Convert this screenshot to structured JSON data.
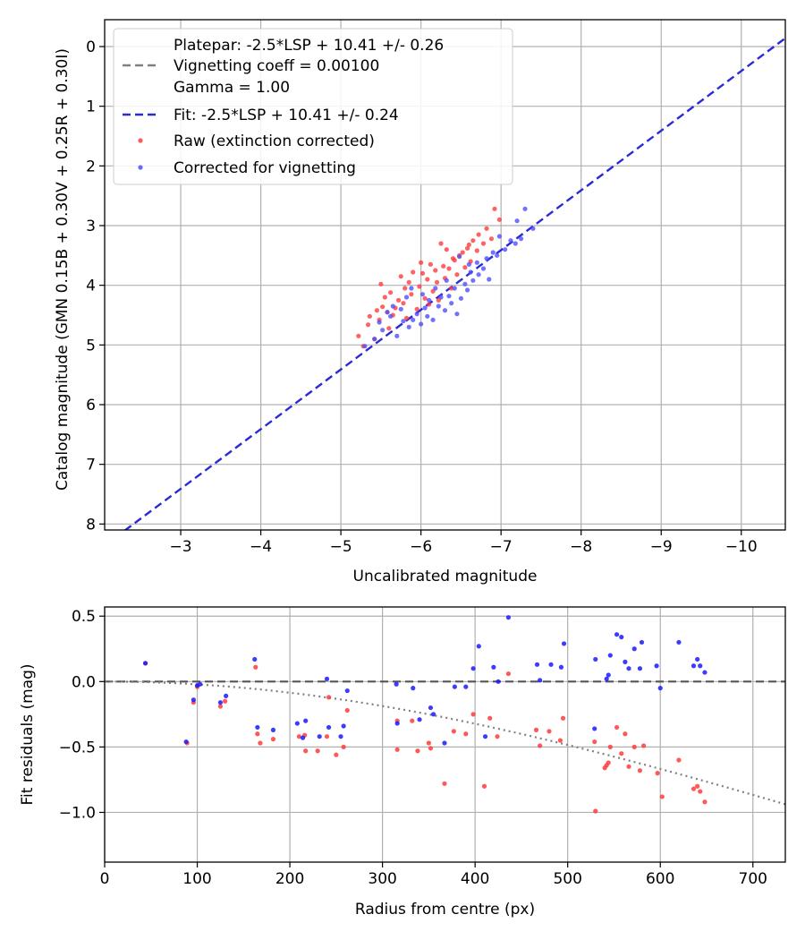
{
  "chart_data": [
    {
      "type": "scatter",
      "xlabel": "Uncalibrated magnitude",
      "ylabel": "Catalog magnitude (GMN 0.15B + 0.30V + 0.25R + 0.30I)",
      "xlim": [
        -2.05,
        -10.55
      ],
      "ylim": [
        8.1,
        -0.45
      ],
      "x_ticks": [
        -3,
        -4,
        -5,
        -6,
        -7,
        -8,
        -9,
        -10
      ],
      "x_tick_labels": [
        "−3",
        "−4",
        "−5",
        "−6",
        "−7",
        "−8",
        "−9",
        "−10"
      ],
      "y_ticks": [
        0,
        1,
        2,
        3,
        4,
        5,
        6,
        7,
        8
      ],
      "y_tick_labels": [
        "0",
        "1",
        "2",
        "3",
        "4",
        "5",
        "6",
        "7",
        "8"
      ],
      "grid": true,
      "legend_position": "top-left",
      "legend": [
        {
          "label": "Platepar: -2.5*LSP + 10.41 +/- 0.26",
          "kind": "none"
        },
        {
          "label": "Vignetting coeff = 0.00100",
          "kind": "line",
          "color": "#808080",
          "dash": true
        },
        {
          "label": "Gamma = 1.00",
          "kind": "none"
        },
        {
          "label": "Fit: -2.5*LSP + 10.41 +/- 0.24",
          "kind": "line",
          "color": "#2a2ad8",
          "dash": true
        },
        {
          "label": "Raw (extinction corrected)",
          "kind": "marker",
          "color": "#ff3b3b"
        },
        {
          "label": "Corrected for vignetting",
          "kind": "marker",
          "color": "#4f4fff"
        }
      ],
      "fit_line": {
        "slope": 1.0,
        "intercept": 10.41,
        "color": "#2a2ad8"
      },
      "series": [
        {
          "name": "Raw (extinction corrected)",
          "color": "#ff3b3b",
          "points": [
            [
              -5.22,
              4.85
            ],
            [
              -5.28,
              5.02
            ],
            [
              -5.34,
              4.66
            ],
            [
              -5.36,
              4.52
            ],
            [
              -5.42,
              4.9
            ],
            [
              -5.45,
              4.42
            ],
            [
              -5.48,
              4.58
            ],
            [
              -5.5,
              3.98
            ],
            [
              -5.52,
              4.36
            ],
            [
              -5.55,
              4.2
            ],
            [
              -5.58,
              4.45
            ],
            [
              -5.6,
              4.72
            ],
            [
              -5.62,
              4.12
            ],
            [
              -5.65,
              4.5
            ],
            [
              -5.68,
              4.38
            ],
            [
              -5.72,
              4.25
            ],
            [
              -5.75,
              3.85
            ],
            [
              -5.78,
              4.3
            ],
            [
              -5.8,
              4.05
            ],
            [
              -5.82,
              4.55
            ],
            [
              -5.85,
              3.95
            ],
            [
              -5.88,
              4.15
            ],
            [
              -5.9,
              3.78
            ],
            [
              -5.95,
              4.4
            ],
            [
              -5.98,
              4.02
            ],
            [
              -6.0,
              3.62
            ],
            [
              -6.02,
              3.8
            ],
            [
              -6.05,
              4.22
            ],
            [
              -6.08,
              3.9
            ],
            [
              -6.1,
              4.32
            ],
            [
              -6.12,
              3.65
            ],
            [
              -6.15,
              4.1
            ],
            [
              -6.18,
              3.75
            ],
            [
              -6.2,
              3.95
            ],
            [
              -6.22,
              4.25
            ],
            [
              -6.25,
              3.3
            ],
            [
              -6.28,
              3.68
            ],
            [
              -6.3,
              3.88
            ],
            [
              -6.32,
              3.4
            ],
            [
              -6.35,
              3.72
            ],
            [
              -6.38,
              4.05
            ],
            [
              -6.42,
              3.58
            ],
            [
              -6.45,
              3.82
            ],
            [
              -6.48,
              3.5
            ],
            [
              -6.52,
              3.45
            ],
            [
              -6.55,
              3.7
            ],
            [
              -6.58,
              3.38
            ],
            [
              -6.6,
              3.32
            ],
            [
              -6.62,
              3.6
            ],
            [
              -6.65,
              3.25
            ],
            [
              -6.7,
              3.42
            ],
            [
              -6.72,
              3.15
            ],
            [
              -6.78,
              3.3
            ],
            [
              -6.82,
              3.05
            ],
            [
              -6.88,
              3.22
            ],
            [
              -6.92,
              2.72
            ],
            [
              -6.98,
              2.9
            ],
            [
              -6.4,
              3.55
            ]
          ]
        },
        {
          "name": "Corrected for vignetting",
          "color": "#4f4fff",
          "points": [
            [
              -5.3,
              5.02
            ],
            [
              -5.42,
              4.9
            ],
            [
              -5.48,
              4.62
            ],
            [
              -5.52,
              4.75
            ],
            [
              -5.58,
              4.45
            ],
            [
              -5.62,
              4.52
            ],
            [
              -5.65,
              4.35
            ],
            [
              -5.7,
              4.85
            ],
            [
              -5.75,
              4.4
            ],
            [
              -5.78,
              4.6
            ],
            [
              -5.82,
              4.2
            ],
            [
              -5.85,
              4.7
            ],
            [
              -5.88,
              4.05
            ],
            [
              -5.9,
              4.58
            ],
            [
              -5.95,
              4.48
            ],
            [
              -6.0,
              4.65
            ],
            [
              -6.02,
              4.15
            ],
            [
              -6.05,
              4.38
            ],
            [
              -6.08,
              4.52
            ],
            [
              -6.1,
              4.25
            ],
            [
              -6.15,
              4.58
            ],
            [
              -6.18,
              4.05
            ],
            [
              -6.22,
              4.35
            ],
            [
              -6.25,
              4.2
            ],
            [
              -6.3,
              4.42
            ],
            [
              -6.32,
              3.92
            ],
            [
              -6.35,
              4.18
            ],
            [
              -6.38,
              4.3
            ],
            [
              -6.42,
              4.05
            ],
            [
              -6.45,
              4.48
            ],
            [
              -6.48,
              3.52
            ],
            [
              -6.5,
              4.22
            ],
            [
              -6.55,
              3.98
            ],
            [
              -6.58,
              4.08
            ],
            [
              -6.62,
              3.78
            ],
            [
              -6.65,
              3.92
            ],
            [
              -6.7,
              3.62
            ],
            [
              -6.72,
              3.82
            ],
            [
              -6.78,
              3.72
            ],
            [
              -6.82,
              3.55
            ],
            [
              -6.85,
              3.9
            ],
            [
              -6.9,
              3.45
            ],
            [
              -6.95,
              3.5
            ],
            [
              -6.98,
              3.18
            ],
            [
              -7.05,
              3.4
            ],
            [
              -7.12,
              3.25
            ],
            [
              -7.18,
              3.3
            ],
            [
              -7.2,
              2.92
            ],
            [
              -7.25,
              3.22
            ],
            [
              -7.3,
              2.72
            ],
            [
              -7.4,
              3.05
            ],
            [
              -6.6,
              3.65
            ]
          ]
        }
      ]
    },
    {
      "type": "scatter",
      "xlabel": "Radius from centre (px)",
      "ylabel": "Fit residuals (mag)",
      "xlim": [
        0,
        735
      ],
      "ylim": [
        -1.38,
        0.57
      ],
      "x_ticks": [
        0,
        100,
        200,
        300,
        400,
        500,
        600,
        700
      ],
      "x_tick_labels": [
        "0",
        "100",
        "200",
        "300",
        "400",
        "500",
        "600",
        "700"
      ],
      "y_ticks": [
        0.5,
        0.0,
        -0.5,
        -1.0
      ],
      "y_tick_labels": [
        "0.5",
        "0.0",
        "−0.5",
        "−1.0"
      ],
      "grid": true,
      "reference_line": {
        "y": 0.0,
        "color": "#555555",
        "dash": true
      },
      "vignetting_curve": {
        "coefficient": 0.001,
        "color": "#808080",
        "dotted": true
      },
      "series": [
        {
          "name": "Raw (extinction corrected)",
          "color": "#ff3b3b",
          "points": [
            [
              44,
              0.14
            ],
            [
              89,
              -0.47
            ],
            [
              96,
              -0.16
            ],
            [
              100,
              -0.04
            ],
            [
              125,
              -0.19
            ],
            [
              130,
              -0.15
            ],
            [
              163,
              0.11
            ],
            [
              165,
              -0.4
            ],
            [
              168,
              -0.47
            ],
            [
              182,
              -0.44
            ],
            [
              210,
              -0.42
            ],
            [
              216,
              -0.41
            ],
            [
              217,
              -0.53
            ],
            [
              230,
              -0.53
            ],
            [
              240,
              -0.42
            ],
            [
              242,
              -0.12
            ],
            [
              250,
              -0.56
            ],
            [
              258,
              -0.5
            ],
            [
              262,
              -0.22
            ],
            [
              316,
              -0.3
            ],
            [
              316,
              -0.52
            ],
            [
              332,
              -0.3
            ],
            [
              338,
              -0.53
            ],
            [
              350,
              -0.47
            ],
            [
              352,
              -0.51
            ],
            [
              367,
              -0.78
            ],
            [
              377,
              -0.38
            ],
            [
              390,
              -0.4
            ],
            [
              398,
              -0.25
            ],
            [
              410,
              -0.8
            ],
            [
              416,
              -0.28
            ],
            [
              424,
              -0.42
            ],
            [
              436,
              0.06
            ],
            [
              466,
              -0.37
            ],
            [
              470,
              -0.49
            ],
            [
              480,
              -0.38
            ],
            [
              492,
              -0.45
            ],
            [
              495,
              -0.28
            ],
            [
              529,
              -0.46
            ],
            [
              530,
              -0.99
            ],
            [
              540,
              -0.66
            ],
            [
              542,
              -0.64
            ],
            [
              544,
              -0.62
            ],
            [
              546,
              -0.5
            ],
            [
              553,
              -0.35
            ],
            [
              558,
              -0.55
            ],
            [
              562,
              -0.4
            ],
            [
              566,
              -0.65
            ],
            [
              572,
              -0.5
            ],
            [
              578,
              -0.68
            ],
            [
              582,
              -0.49
            ],
            [
              597,
              -0.7
            ],
            [
              602,
              -0.88
            ],
            [
              620,
              -0.6
            ],
            [
              636,
              -0.82
            ],
            [
              640,
              -0.8
            ],
            [
              643,
              -0.84
            ],
            [
              648,
              -0.92
            ]
          ]
        },
        {
          "name": "Corrected for vignetting",
          "color": "#1a1aff",
          "points": [
            [
              44,
              0.14
            ],
            [
              88,
              -0.46
            ],
            [
              96,
              -0.14
            ],
            [
              100,
              -0.03
            ],
            [
              103,
              -0.02
            ],
            [
              125,
              -0.16
            ],
            [
              131,
              -0.11
            ],
            [
              162,
              0.17
            ],
            [
              165,
              -0.35
            ],
            [
              182,
              -0.37
            ],
            [
              208,
              -0.32
            ],
            [
              214,
              -0.43
            ],
            [
              217,
              -0.3
            ],
            [
              232,
              -0.42
            ],
            [
              240,
              0.02
            ],
            [
              242,
              -0.35
            ],
            [
              255,
              -0.42
            ],
            [
              258,
              -0.34
            ],
            [
              262,
              -0.07
            ],
            [
              315,
              -0.02
            ],
            [
              316,
              -0.32
            ],
            [
              333,
              -0.05
            ],
            [
              340,
              -0.29
            ],
            [
              352,
              -0.2
            ],
            [
              355,
              -0.25
            ],
            [
              367,
              -0.47
            ],
            [
              378,
              -0.04
            ],
            [
              390,
              -0.04
            ],
            [
              398,
              0.1
            ],
            [
              404,
              0.27
            ],
            [
              411,
              -0.42
            ],
            [
              420,
              0.11
            ],
            [
              425,
              0.0
            ],
            [
              436,
              0.49
            ],
            [
              467,
              0.13
            ],
            [
              470,
              0.01
            ],
            [
              482,
              0.13
            ],
            [
              493,
              0.11
            ],
            [
              496,
              0.29
            ],
            [
              530,
              0.17
            ],
            [
              529,
              -0.36
            ],
            [
              542,
              0.02
            ],
            [
              544,
              0.05
            ],
            [
              546,
              0.2
            ],
            [
              553,
              0.36
            ],
            [
              558,
              0.34
            ],
            [
              562,
              0.15
            ],
            [
              566,
              0.1
            ],
            [
              572,
              0.25
            ],
            [
              578,
              0.1
            ],
            [
              580,
              0.3
            ],
            [
              596,
              0.12
            ],
            [
              600,
              -0.05
            ],
            [
              620,
              0.3
            ],
            [
              636,
              0.12
            ],
            [
              640,
              0.17
            ],
            [
              643,
              0.12
            ],
            [
              648,
              0.07
            ]
          ]
        }
      ]
    }
  ]
}
